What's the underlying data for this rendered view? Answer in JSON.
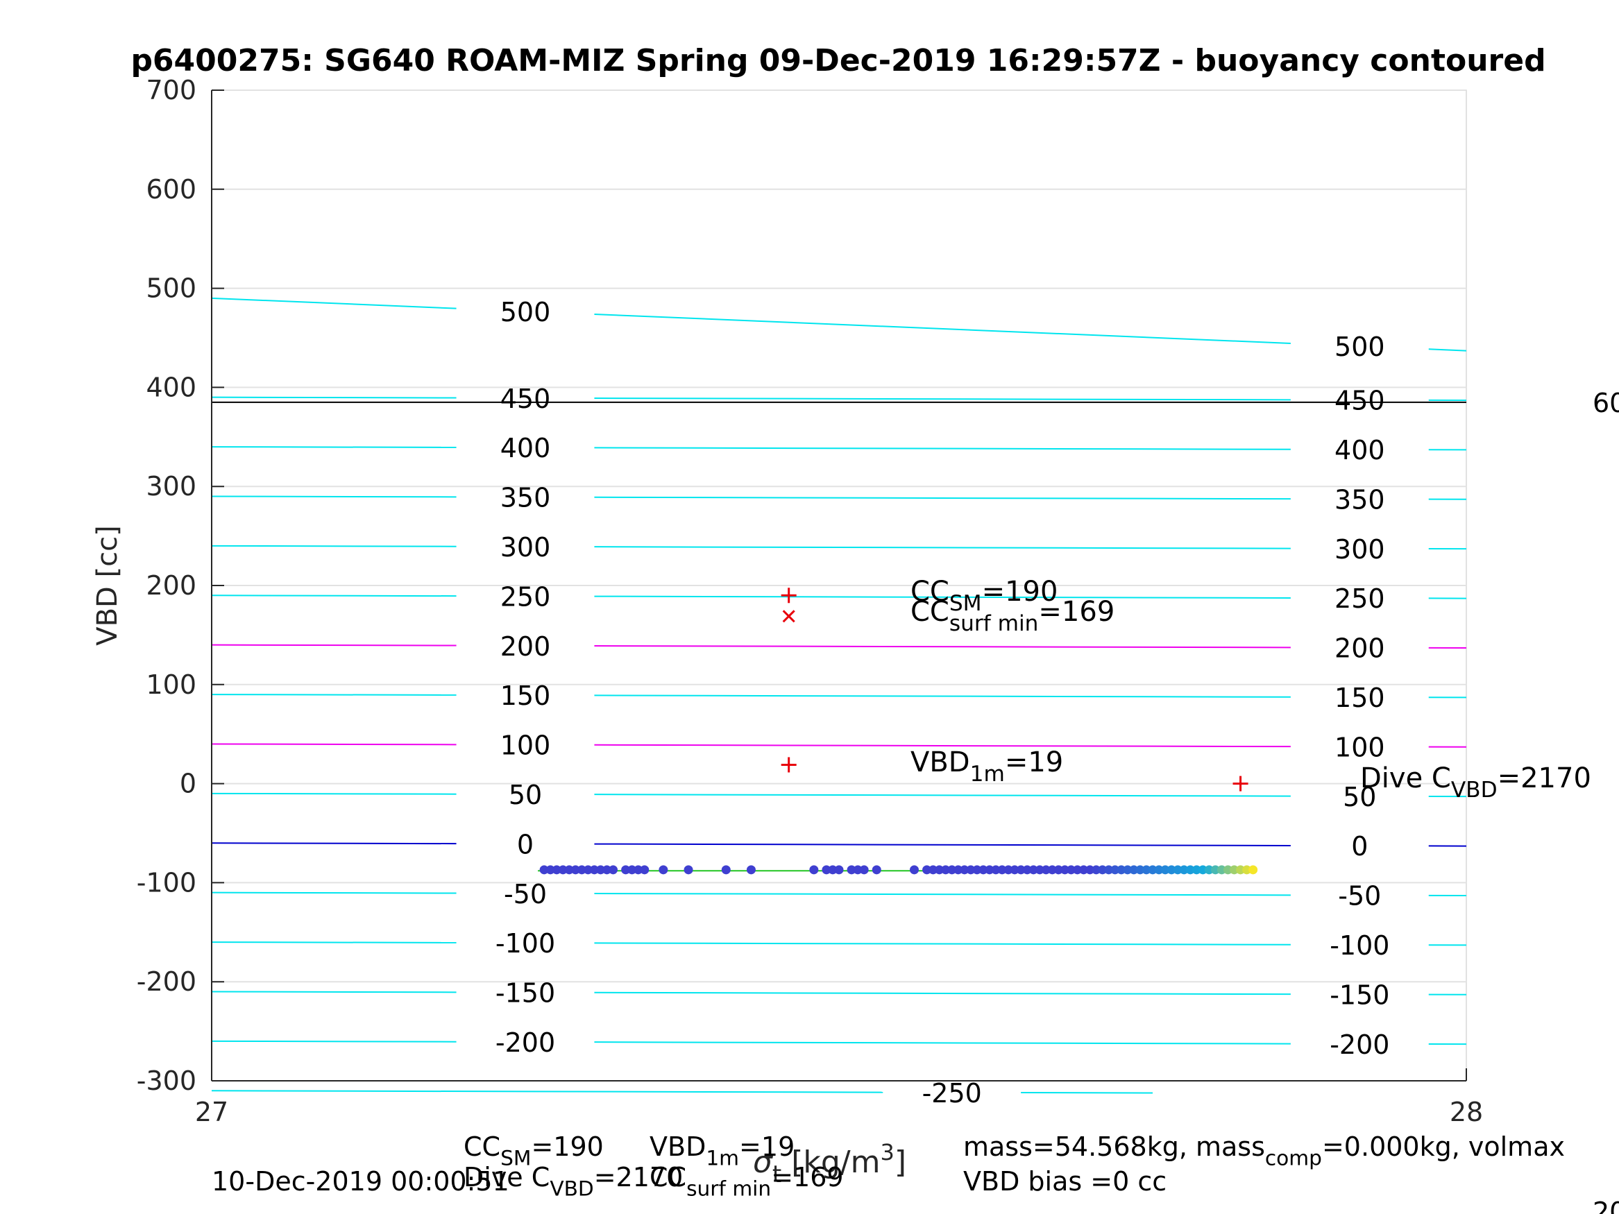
{
  "chart_data": {
    "type": "scatter",
    "title": "p6400275: SG640 ROAM-MIZ Spring 09-Dec-2019 16:29:57Z - buoyancy contoured",
    "ylabel": "VBD [cc]",
    "xlabel_html_parts": {
      "base": "σ",
      "sub": "t",
      "unit_pre": "[kg/m",
      "unit_sup": "3",
      "unit_post": "]"
    },
    "xlim": [
      27,
      28
    ],
    "ylim": [
      -300,
      700
    ],
    "x_ticks": [
      "27",
      "28"
    ],
    "y_ticks": [
      "700",
      "600",
      "500",
      "400",
      "300",
      "200",
      "100",
      "0",
      "-100",
      "-200",
      "-300"
    ],
    "y_tick_values": [
      700,
      600,
      500,
      400,
      300,
      200,
      100,
      0,
      -100,
      -200,
      -300
    ],
    "grid": true,
    "contours": [
      {
        "level": 500,
        "label": "500",
        "y_left": 490,
        "y_right": 437,
        "color": "#00e5ee",
        "label_left": "500",
        "label_right": "500"
      },
      {
        "level": 450,
        "label": "450",
        "y_left": 390,
        "y_right": 387,
        "color": "#00e5ee",
        "label_left": "450",
        "label_right": "450"
      },
      {
        "level": 400,
        "label": "400",
        "y_left": 340,
        "y_right": 337,
        "color": "#00e5ee",
        "label_left": "400",
        "label_right": "400"
      },
      {
        "level": 350,
        "label": "350",
        "y_left": 290,
        "y_right": 287,
        "color": "#00e5ee",
        "label_left": "350",
        "label_right": "350"
      },
      {
        "level": 300,
        "label": "300",
        "y_left": 240,
        "y_right": 237,
        "color": "#00e5ee",
        "label_left": "300",
        "label_right": "300"
      },
      {
        "level": 250,
        "label": "250",
        "y_left": 190,
        "y_right": 187,
        "color": "#00e5ee",
        "label_left": "250",
        "label_right": "250"
      },
      {
        "level": 200,
        "label": "200",
        "y_left": 140,
        "y_right": 137,
        "color": "#ee00ee",
        "label_left": "200",
        "label_right": "200"
      },
      {
        "level": 150,
        "label": "150",
        "y_left": 90,
        "y_right": 87,
        "color": "#00e5ee",
        "label_left": "150",
        "label_right": "150"
      },
      {
        "level": 100,
        "label": "100",
        "y_left": 40,
        "y_right": 37,
        "color": "#ee00ee",
        "label_left": "100",
        "label_right": "100"
      },
      {
        "level": 50,
        "label": "50",
        "y_left": -10,
        "y_right": -13,
        "color": "#00e5ee",
        "label_left": "50",
        "label_right": "50"
      },
      {
        "level": 0,
        "label": "0",
        "y_left": -60,
        "y_right": -63,
        "color": "#0000cd",
        "label_left": "0",
        "label_right": "0"
      },
      {
        "level": -50,
        "label": "-50",
        "y_left": -110,
        "y_right": -113,
        "color": "#00e5ee",
        "label_left": "-50",
        "label_right": "-50"
      },
      {
        "level": -100,
        "label": "-100",
        "y_left": -160,
        "y_right": -163,
        "color": "#00e5ee",
        "label_left": "-100",
        "label_right": "-100"
      },
      {
        "level": -150,
        "label": "-150",
        "y_left": -210,
        "y_right": -213,
        "color": "#00e5ee",
        "label_left": "-150",
        "label_right": "-150"
      },
      {
        "level": -200,
        "label": "-200",
        "y_left": -260,
        "y_right": -263,
        "color": "#00e5ee",
        "label_left": "-200",
        "label_right": "-200"
      },
      {
        "level": -250,
        "label": "-250",
        "y_left": -310,
        "y_right": -313,
        "color": "#00e5ee",
        "label_left": "",
        "label_right": ""
      }
    ],
    "volmax_line": {
      "y": 385,
      "label": "60"
    },
    "fit_line": {
      "x": [
        27.26,
        27.83
      ],
      "y": [
        -88,
        -88
      ],
      "color": "#22c522"
    },
    "markers": [
      {
        "name": "CC_SM",
        "x": 27.46,
        "y": 190,
        "symbol": "+",
        "color": "#e8000b"
      },
      {
        "name": "CC_surf_min",
        "x": 27.46,
        "y": 169,
        "symbol": "x",
        "color": "#e8000b"
      },
      {
        "name": "VBD_1m",
        "x": 27.46,
        "y": 19,
        "symbol": "+",
        "color": "#e8000b"
      },
      {
        "name": "Dive_C_VBD",
        "x": 27.82,
        "y": 0,
        "symbol": "+",
        "color": "#e8000b"
      }
    ],
    "marker_labels": [
      {
        "base": "CC",
        "sub": "SM",
        "value": "=190"
      },
      {
        "base": "CC",
        "sub": "surf min",
        "value": "=169"
      },
      {
        "base": "VBD",
        "sub": "1m",
        "value": "=19"
      },
      {
        "base": "Dive C",
        "sub": "VBD",
        "value": "=2170"
      }
    ],
    "series_scatter": {
      "y": -87,
      "points_x": [
        27.265,
        27.27,
        27.275,
        27.28,
        27.285,
        27.29,
        27.295,
        27.3,
        27.305,
        27.31,
        27.315,
        27.32,
        27.33,
        27.335,
        27.34,
        27.345,
        27.36,
        27.38,
        27.41,
        27.43,
        27.48,
        27.49,
        27.495,
        27.5,
        27.51,
        27.515,
        27.52,
        27.53,
        27.56,
        27.57,
        27.575,
        27.58,
        27.585,
        27.59,
        27.595,
        27.6,
        27.605,
        27.61,
        27.615,
        27.62,
        27.625,
        27.63,
        27.635,
        27.64,
        27.645,
        27.65,
        27.655,
        27.66,
        27.665,
        27.67,
        27.675,
        27.68,
        27.685,
        27.69,
        27.695,
        27.7,
        27.705,
        27.71,
        27.715,
        27.72,
        27.725,
        27.73,
        27.735,
        27.74,
        27.745,
        27.75,
        27.755,
        27.76,
        27.765,
        27.77,
        27.775,
        27.78,
        27.785,
        27.79,
        27.795,
        27.8,
        27.805,
        27.81,
        27.815,
        27.82,
        27.825,
        27.83
      ]
    }
  },
  "footer": {
    "date": "10-Dec-2019 00:00:51",
    "cc_sm": {
      "base": "CC",
      "sub": "SM",
      "value": "=190"
    },
    "dive_c_vbd": {
      "base": "Dive C",
      "sub": "VBD",
      "value": "=2170"
    },
    "vbd_1m": {
      "base": "VBD",
      "sub": "1m",
      "value": "=19"
    },
    "cc_surf_min": {
      "base": "CC",
      "sub": "surf min",
      "value": "=169"
    },
    "mass_line": {
      "mass": "mass=54.568kg, mass",
      "sub": "comp",
      "rest": "=0.000kg, volmax"
    },
    "vbd_bias": "VBD bias =0 cc",
    "right_edge_fragment": "20"
  }
}
